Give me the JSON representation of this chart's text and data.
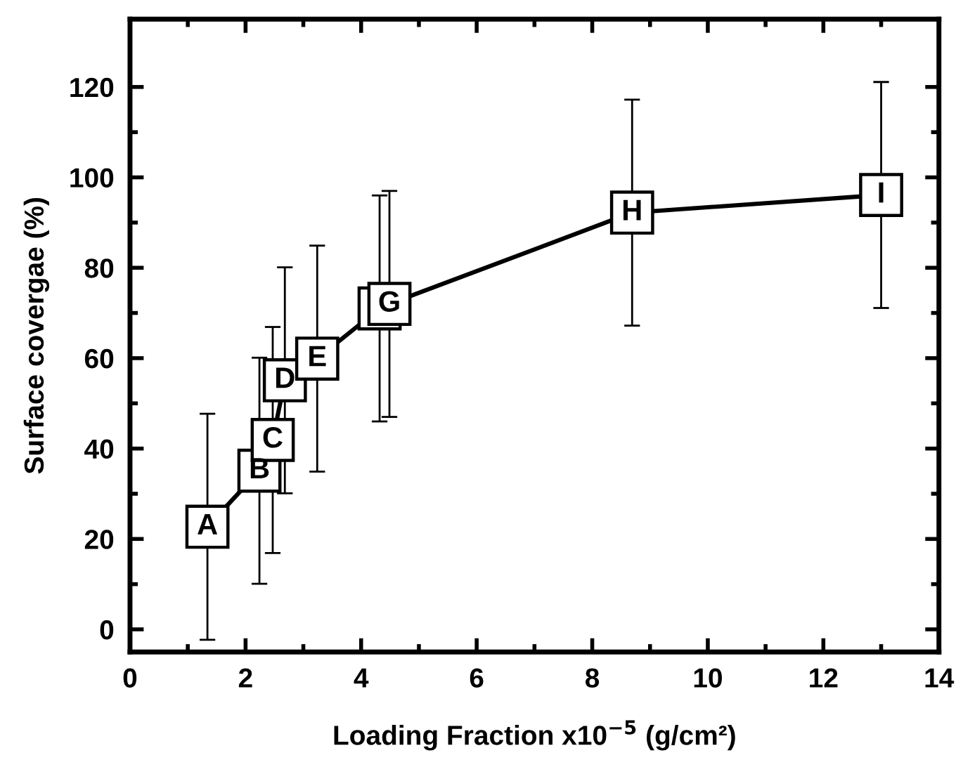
{
  "chart_data": {
    "type": "line",
    "xlabel": "Loading Fraction x10$^{−5}$ (g/cm²)",
    "ylabel": "Surface covergae (%)",
    "x": [
      1.34,
      2.24,
      2.47,
      2.68,
      3.24,
      4.32,
      4.49,
      8.69,
      13.0
    ],
    "series": [
      {
        "color": "#000000",
        "values": [
          22.7,
          35.1,
          41.9,
          55.1,
          59.9,
          71.0,
          72.0,
          92.2,
          96.1
        ],
        "errors": [
          25,
          25,
          25,
          25,
          25,
          25,
          25,
          25,
          25
        ]
      }
    ],
    "xlim": [
      0,
      14
    ],
    "xticks": [
      0,
      2,
      4,
      6,
      8,
      10,
      12,
      14
    ],
    "ylim": [
      -5,
      135
    ],
    "yticks": [
      0,
      20,
      40,
      60,
      80,
      100,
      120
    ],
    "marker": "square",
    "line_style": "solid",
    "grid": false,
    "legend": false,
    "annotations": [
      {
        "text": "A",
        "x": 1.34,
        "y": 22.7
      },
      {
        "text": "B",
        "x": 2.24,
        "y": 35.1
      },
      {
        "text": "C",
        "x": 2.47,
        "y": 41.9
      },
      {
        "text": "D",
        "x": 2.68,
        "y": 55.1
      },
      {
        "text": "E",
        "x": 3.24,
        "y": 59.9
      },
      {
        "text": "G",
        "x": 4.49,
        "y": 72.0
      },
      {
        "text": "H",
        "x": 8.69,
        "y": 92.2
      },
      {
        "text": "I",
        "x": 13.0,
        "y": 96.1
      }
    ]
  }
}
